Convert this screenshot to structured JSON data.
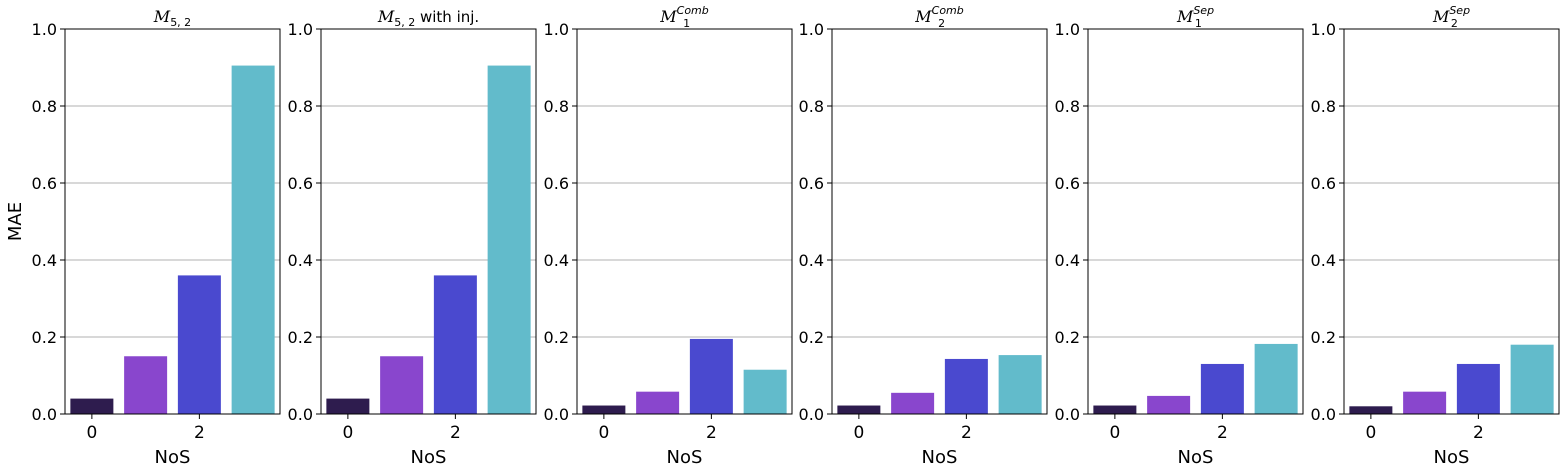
{
  "figure": {
    "y_axis_label": "MAE",
    "x_axis_label": "NoS",
    "y_tick_labels": [
      "0.0",
      "0.2",
      "0.4",
      "0.6",
      "0.8",
      "1.0"
    ],
    "x_tick_labels": [
      "0",
      "2"
    ]
  },
  "colors": {
    "series": [
      "#2e1c4e",
      "#8946cd",
      "#4a49cf",
      "#62bbcb"
    ],
    "grid": "#b0b0b0",
    "axes": "#000000"
  },
  "chart_data": [
    {
      "type": "bar",
      "title_main": "M",
      "title_sub": "5, 2",
      "title_sup": "",
      "title_suffix": "",
      "categories": [
        0,
        1,
        2,
        3
      ],
      "values": [
        0.04,
        0.15,
        0.36,
        0.905
      ],
      "xlabel": "NoS",
      "ylabel": "MAE",
      "ylim": [
        0,
        1
      ],
      "grid": "y"
    },
    {
      "type": "bar",
      "title_main": "M",
      "title_sub": "5, 2",
      "title_sup": "",
      "title_suffix": " with inj.",
      "categories": [
        0,
        1,
        2,
        3
      ],
      "values": [
        0.04,
        0.15,
        0.36,
        0.905
      ],
      "xlabel": "NoS",
      "ylabel": "",
      "ylim": [
        0,
        1
      ],
      "grid": "y"
    },
    {
      "type": "bar",
      "title_main": "M",
      "title_sub": "1",
      "title_sup": "Comb",
      "title_suffix": "",
      "categories": [
        0,
        1,
        2,
        3
      ],
      "values": [
        0.022,
        0.058,
        0.195,
        0.115
      ],
      "xlabel": "NoS",
      "ylabel": "",
      "ylim": [
        0,
        1
      ],
      "grid": "y"
    },
    {
      "type": "bar",
      "title_main": "M",
      "title_sub": "2",
      "title_sup": "Comb",
      "title_suffix": "",
      "categories": [
        0,
        1,
        2,
        3
      ],
      "values": [
        0.022,
        0.055,
        0.143,
        0.153
      ],
      "xlabel": "NoS",
      "ylabel": "",
      "ylim": [
        0,
        1
      ],
      "grid": "y"
    },
    {
      "type": "bar",
      "title_main": "M",
      "title_sub": "1",
      "title_sup": "Sep",
      "title_suffix": "",
      "categories": [
        0,
        1,
        2,
        3
      ],
      "values": [
        0.022,
        0.047,
        0.13,
        0.182
      ],
      "xlabel": "NoS",
      "ylabel": "",
      "ylim": [
        0,
        1
      ],
      "grid": "y"
    },
    {
      "type": "bar",
      "title_main": "M",
      "title_sub": "2",
      "title_sup": "Sep",
      "title_suffix": "",
      "categories": [
        0,
        1,
        2,
        3
      ],
      "values": [
        0.02,
        0.058,
        0.13,
        0.18
      ],
      "xlabel": "NoS",
      "ylabel": "",
      "ylim": [
        0,
        1
      ],
      "grid": "y"
    }
  ]
}
